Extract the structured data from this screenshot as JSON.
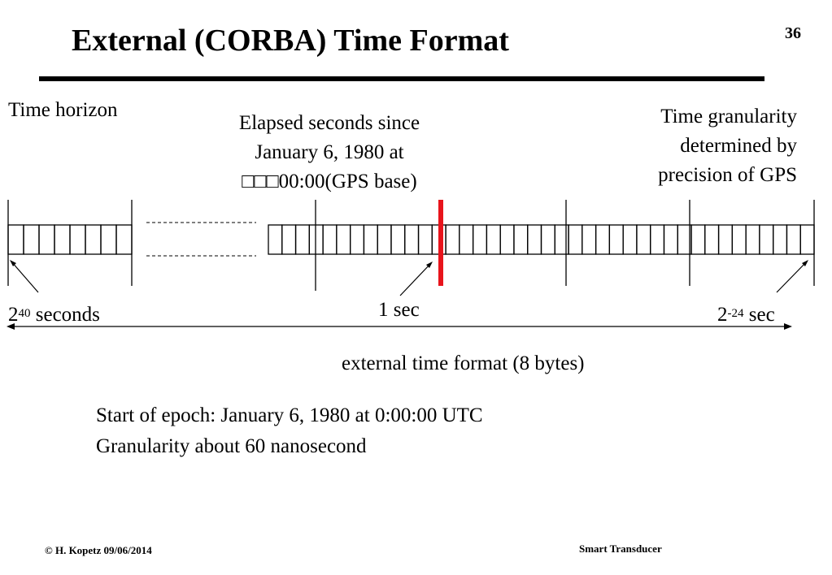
{
  "slide": {
    "title": "External  (CORBA)  Time Format",
    "page_number": "36"
  },
  "diagram": {
    "time_horizon": "Time horizon",
    "elapsed_line1": "Elapsed  seconds since",
    "elapsed_line2": "January 6, 1980 at",
    "elapsed_line3": "□□□00:00(GPS base)",
    "granularity_line1": "Time granularity",
    "granularity_line2": "determined by",
    "granularity_line3": "precision of GPS",
    "left_label_base": "2",
    "left_label_exp": "40",
    "left_label_unit": " seconds",
    "mid_label": "1 sec",
    "right_label_base": "2",
    "right_label_exp": "-24",
    "right_label_unit": " sec",
    "format_caption": "external  time format (8 bytes)",
    "marker_color": "#e8141c"
  },
  "notes": {
    "epoch": "Start of epoch: January 6, 1980 at 0:00:00 UTC",
    "granularity": "Granularity  about 60 nanosecond"
  },
  "footer": {
    "author": "© H. Kopetz  09/06/2014",
    "course": "Smart Transducer"
  }
}
